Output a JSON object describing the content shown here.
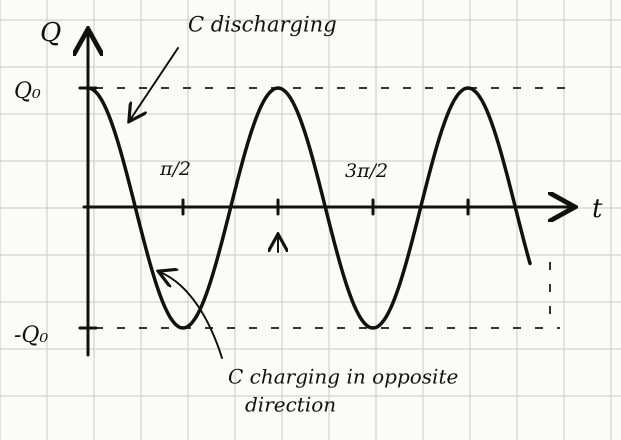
{
  "axes": {
    "y_label": "Q",
    "x_label": "t"
  },
  "levels": {
    "top": "Q₀",
    "bottom": "-Q₀"
  },
  "ticks": [
    "π/2",
    "3π/2"
  ],
  "annotations": {
    "discharging": "C discharging",
    "charging_line1": "C charging in opposite",
    "charging_line2": "direction"
  }
}
